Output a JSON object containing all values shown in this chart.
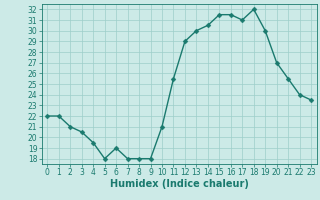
{
  "x": [
    0,
    1,
    2,
    3,
    4,
    5,
    6,
    7,
    8,
    9,
    10,
    11,
    12,
    13,
    14,
    15,
    16,
    17,
    18,
    19,
    20,
    21,
    22,
    23
  ],
  "y": [
    22,
    22,
    21,
    20.5,
    19.5,
    18,
    19,
    18,
    18,
    18,
    21,
    25.5,
    29,
    30,
    30.5,
    31.5,
    31.5,
    31,
    32,
    30,
    27,
    25.5,
    24,
    23.5
  ],
  "line_color": "#1a7a6e",
  "marker_color": "#1a7a6e",
  "bg_color": "#cceae7",
  "grid_color": "#9ececa",
  "xlabel": "Humidex (Indice chaleur)",
  "ylim": [
    17.5,
    32.5
  ],
  "xlim": [
    -0.5,
    23.5
  ],
  "yticks": [
    18,
    19,
    20,
    21,
    22,
    23,
    24,
    25,
    26,
    27,
    28,
    29,
    30,
    31,
    32
  ],
  "xticks": [
    0,
    1,
    2,
    3,
    4,
    5,
    6,
    7,
    8,
    9,
    10,
    11,
    12,
    13,
    14,
    15,
    16,
    17,
    18,
    19,
    20,
    21,
    22,
    23
  ],
  "tick_fontsize": 5.5,
  "label_fontsize": 7,
  "linewidth": 1.0,
  "markersize": 2.5
}
